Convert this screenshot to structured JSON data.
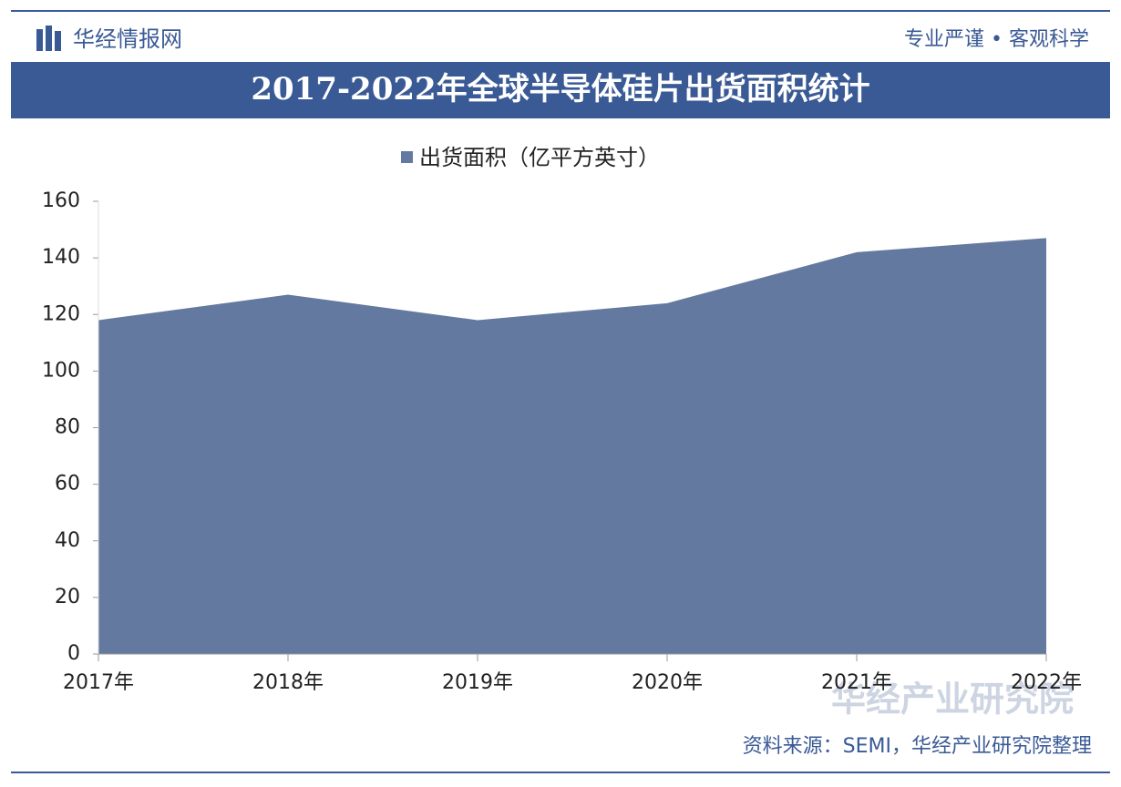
{
  "header": {
    "logo": "华经情报网",
    "slogan": "专业严谨 • 客观科学"
  },
  "chart_data": {
    "type": "area",
    "title": "2017-2022年全球半导体硅片出货面积统计",
    "categories": [
      "2017年",
      "2018年",
      "2019年",
      "2020年",
      "2021年",
      "2022年"
    ],
    "series": [
      {
        "name": "出货面积（亿平方英寸）",
        "color": "#64799f",
        "values": [
          118,
          127,
          118,
          124,
          142,
          147
        ]
      }
    ],
    "ylim": [
      0,
      160
    ],
    "yticks": [
      0,
      20,
      40,
      60,
      80,
      100,
      120,
      140,
      160
    ],
    "legend": "top"
  },
  "source": "资料来源：SEMI，华经产业研究院整理",
  "watermark": "华经产业研究院"
}
